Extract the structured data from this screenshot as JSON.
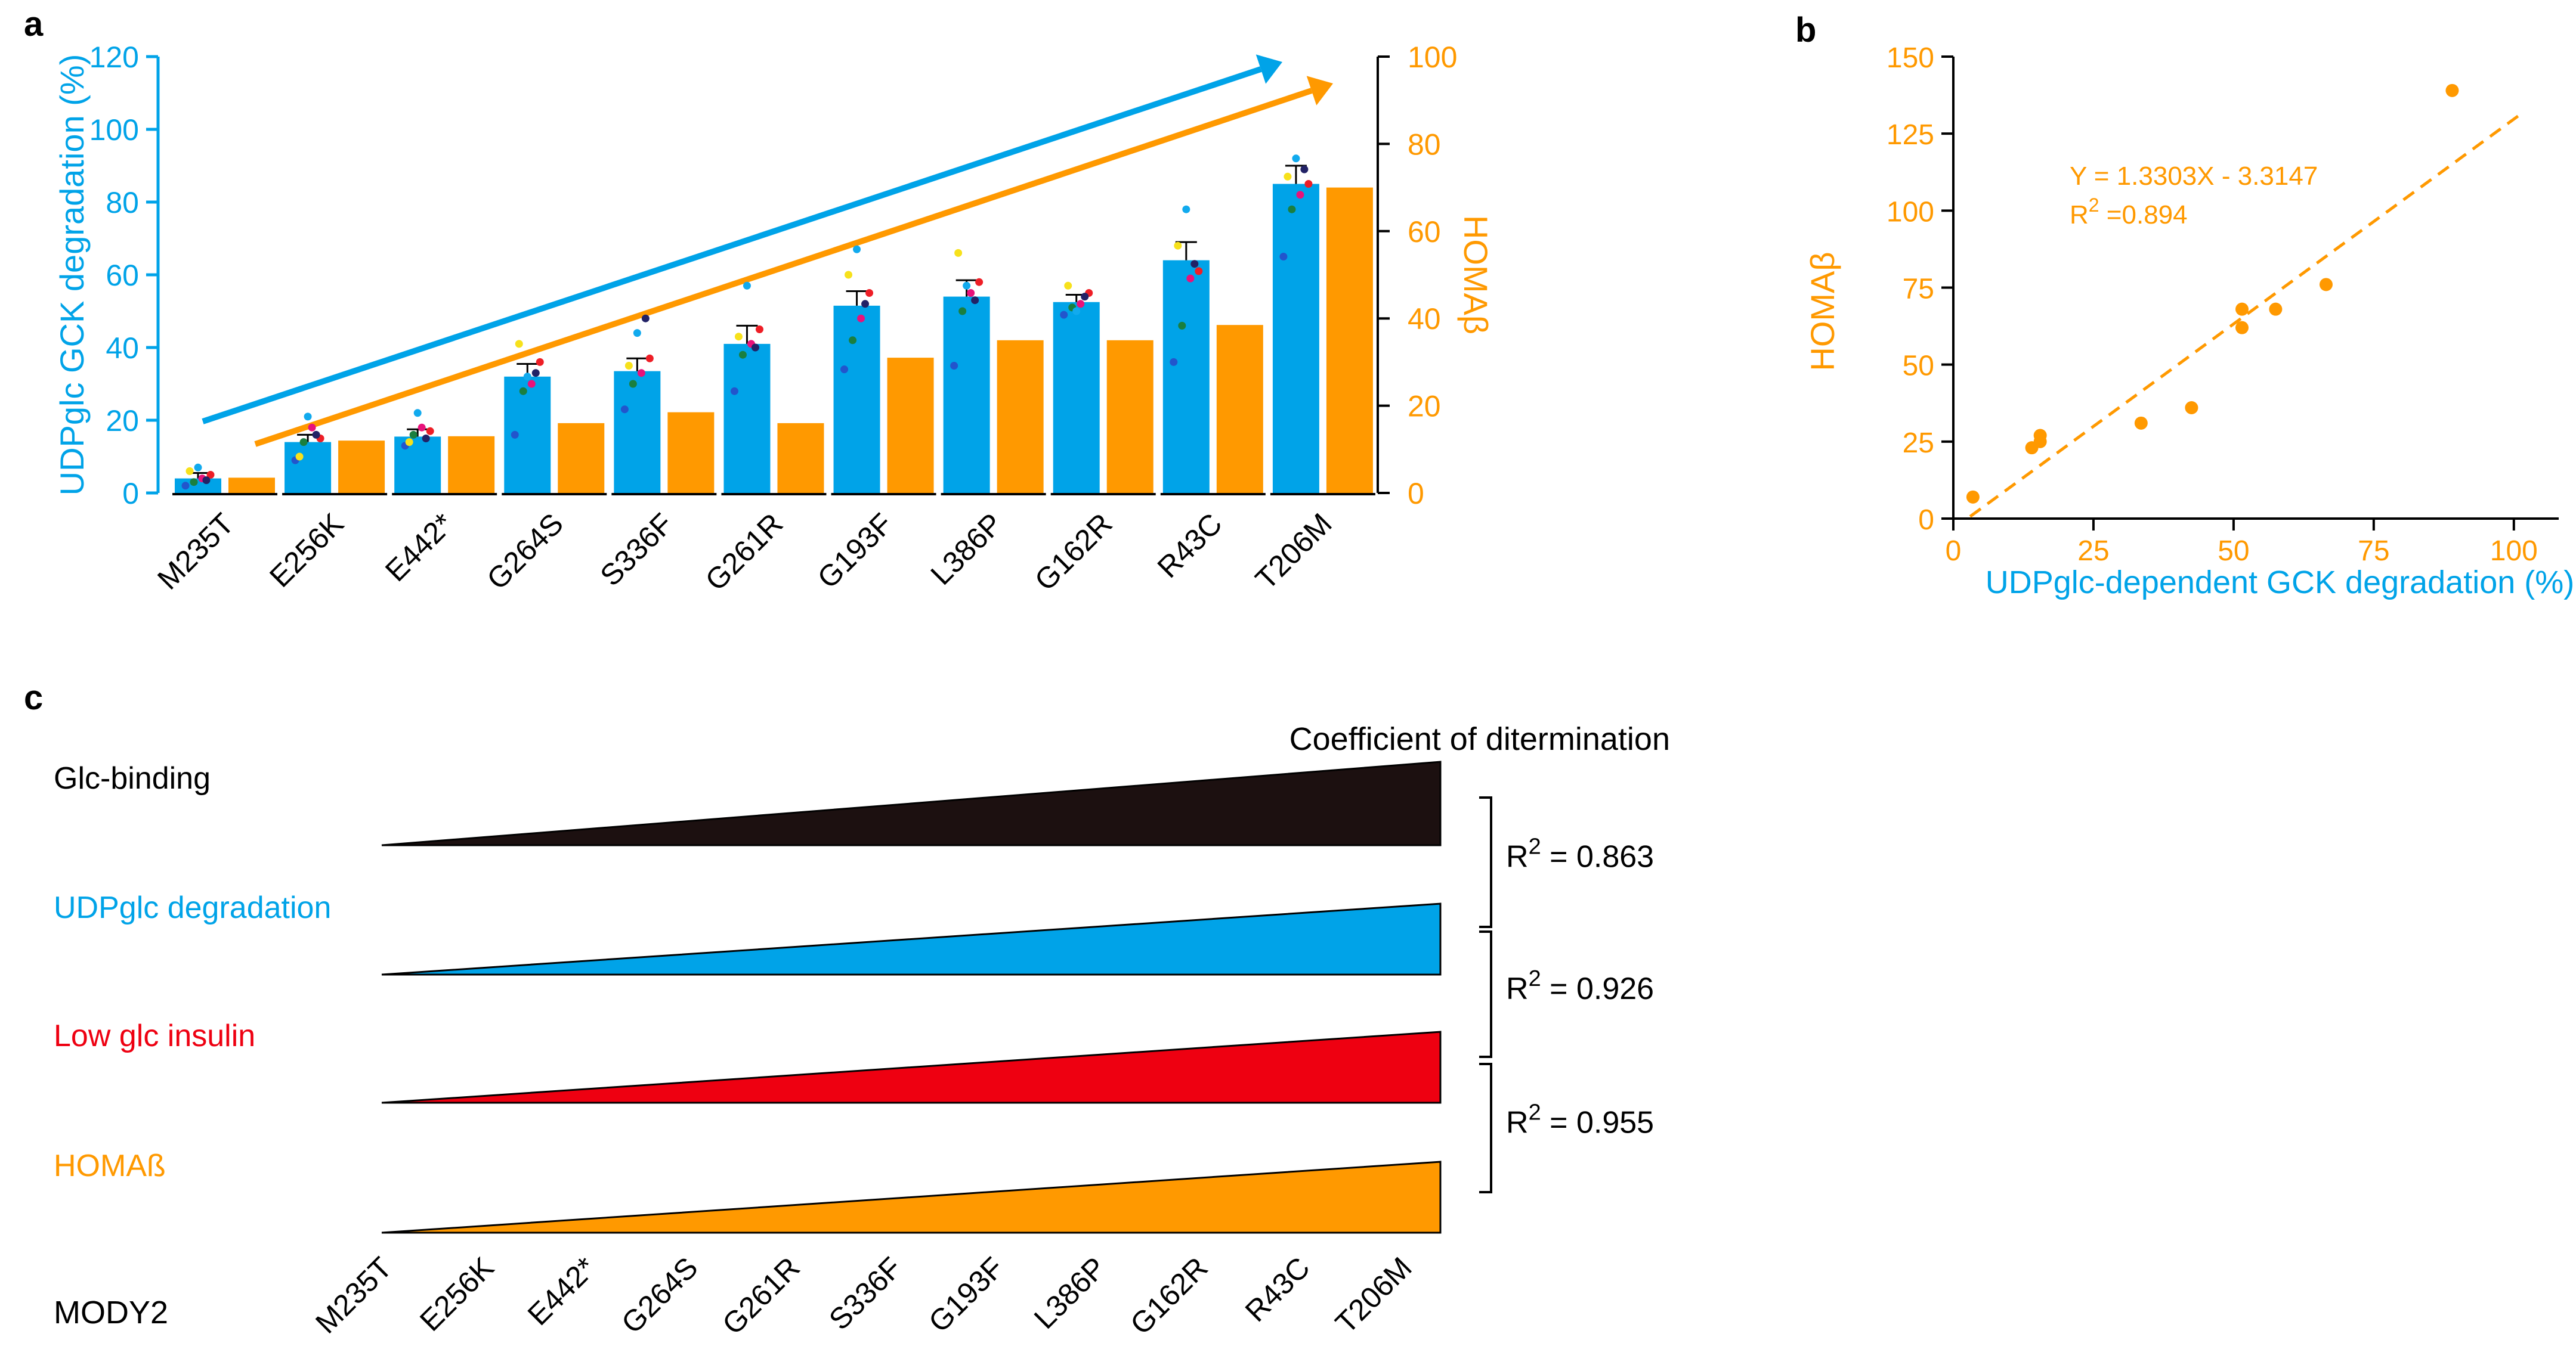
{
  "colors": {
    "blue": "#00a3e8",
    "orange": "#ff9900",
    "black": "#000000",
    "dark": "#1c1010",
    "red": "#ee0011",
    "dots": [
      "#2255cc",
      "#1a7f3f",
      "#e8127a",
      "#ee1e26",
      "#f7e11b",
      "#11aaee",
      "#222266"
    ]
  },
  "chart_data": [
    {
      "panel": "a",
      "type": "bar",
      "categories": [
        "M235T",
        "E256K",
        "E442*",
        "G264S",
        "S336F",
        "G261R",
        "G193F",
        "L386P",
        "G162R",
        "R43C",
        "T206M"
      ],
      "ylabel": "UDPglc GCK degradation (%)",
      "y2label": "HOMAβ",
      "ylim": [
        0,
        120
      ],
      "y2lim": [
        0,
        100
      ],
      "yticks": [
        "0",
        "20",
        "40",
        "60",
        "80",
        "100",
        "120"
      ],
      "y2ticks": [
        "0",
        "20",
        "40",
        "60",
        "80",
        "100"
      ],
      "series": [
        {
          "name": "UDPglc GCK degradation (%)",
          "axis": "left",
          "values": [
            4,
            14,
            15.5,
            32,
            33.5,
            41,
            51.5,
            54,
            52.5,
            64,
            85
          ],
          "errors": [
            1.5,
            2,
            2,
            3.5,
            3.5,
            5,
            4,
            4.5,
            2,
            5,
            5
          ]
        },
        {
          "name": "HOMAβ",
          "axis": "right",
          "values": [
            3.5,
            12,
            13,
            16,
            18.5,
            16,
            31,
            35,
            35,
            38.5,
            70
          ]
        }
      ],
      "replicates": [
        [
          2,
          3,
          4,
          5,
          6,
          7,
          3.5
        ],
        [
          9,
          14,
          18,
          15,
          10,
          21,
          16
        ],
        [
          13,
          16,
          18,
          17,
          14,
          22,
          15
        ],
        [
          16,
          28,
          30,
          36,
          41,
          32,
          33
        ],
        [
          23,
          30,
          33,
          37,
          35,
          44,
          48
        ],
        [
          28,
          38,
          41,
          45,
          43,
          57,
          40
        ],
        [
          34,
          42,
          48,
          55,
          60,
          67,
          52
        ],
        [
          35,
          50,
          55,
          58,
          66,
          57,
          53
        ],
        [
          49,
          51,
          52,
          55,
          57,
          50,
          54
        ],
        [
          36,
          46,
          59,
          61,
          68,
          78,
          63
        ],
        [
          65,
          78,
          82,
          85,
          87,
          92,
          89
        ]
      ]
    },
    {
      "panel": "b",
      "type": "scatter",
      "xlabel": "UDPglc-dependent GCK degradation (%)",
      "ylabel": "HOMAβ",
      "xlim": [
        0,
        108
      ],
      "ylim": [
        0,
        150
      ],
      "xticks": [
        "0",
        "25",
        "50",
        "75",
        "100"
      ],
      "yticks": [
        "0",
        "25",
        "50",
        "75",
        "100",
        "125",
        "150"
      ],
      "x": [
        3.5,
        14,
        15.5,
        15.5,
        33.5,
        42.5,
        51.5,
        51.5,
        57.5,
        66.5,
        89
      ],
      "y": [
        7,
        23,
        25,
        27,
        31,
        36,
        68,
        62,
        68,
        76,
        139
      ],
      "fit": {
        "slope": 1.3303,
        "intercept": -3.3147,
        "x_range": [
          3,
          101
        ]
      },
      "annotation": {
        "equation": "Y = 1.3303X - 3.3147",
        "r2_prefix": "R",
        "r2_exp": "2",
        "r2_value": " =0.894"
      }
    },
    {
      "panel": "c",
      "type": "wedge-ranking",
      "title": "Coefficient of ditermination",
      "rows": [
        {
          "label": "Glc-binding",
          "color_key": "dark",
          "rise": 1.0
        },
        {
          "label": "UDPglc degradation",
          "color_key": "blue",
          "rise": 0.85
        },
        {
          "label": "Low glc insulin",
          "color_key": "red",
          "rise": 0.85
        },
        {
          "label": "HOMAß",
          "color_key": "orange",
          "rise": 0.85
        }
      ],
      "row_label_header": "MODY2",
      "ranking": [
        "M235T",
        "E256K",
        "E442*",
        "G264S",
        "G261R",
        "S336F",
        "G193F",
        "L386P",
        "G162R",
        "R43C",
        "T206M"
      ],
      "correlations": [
        {
          "prefix": "R",
          "exp": "2",
          "value": " = 0.863"
        },
        {
          "prefix": "R",
          "exp": "2",
          "value": " = 0.926"
        },
        {
          "prefix": "R",
          "exp": "2",
          "value": " = 0.955"
        }
      ]
    }
  ],
  "panel_labels": {
    "a": "a",
    "b": "b",
    "c": "c"
  }
}
